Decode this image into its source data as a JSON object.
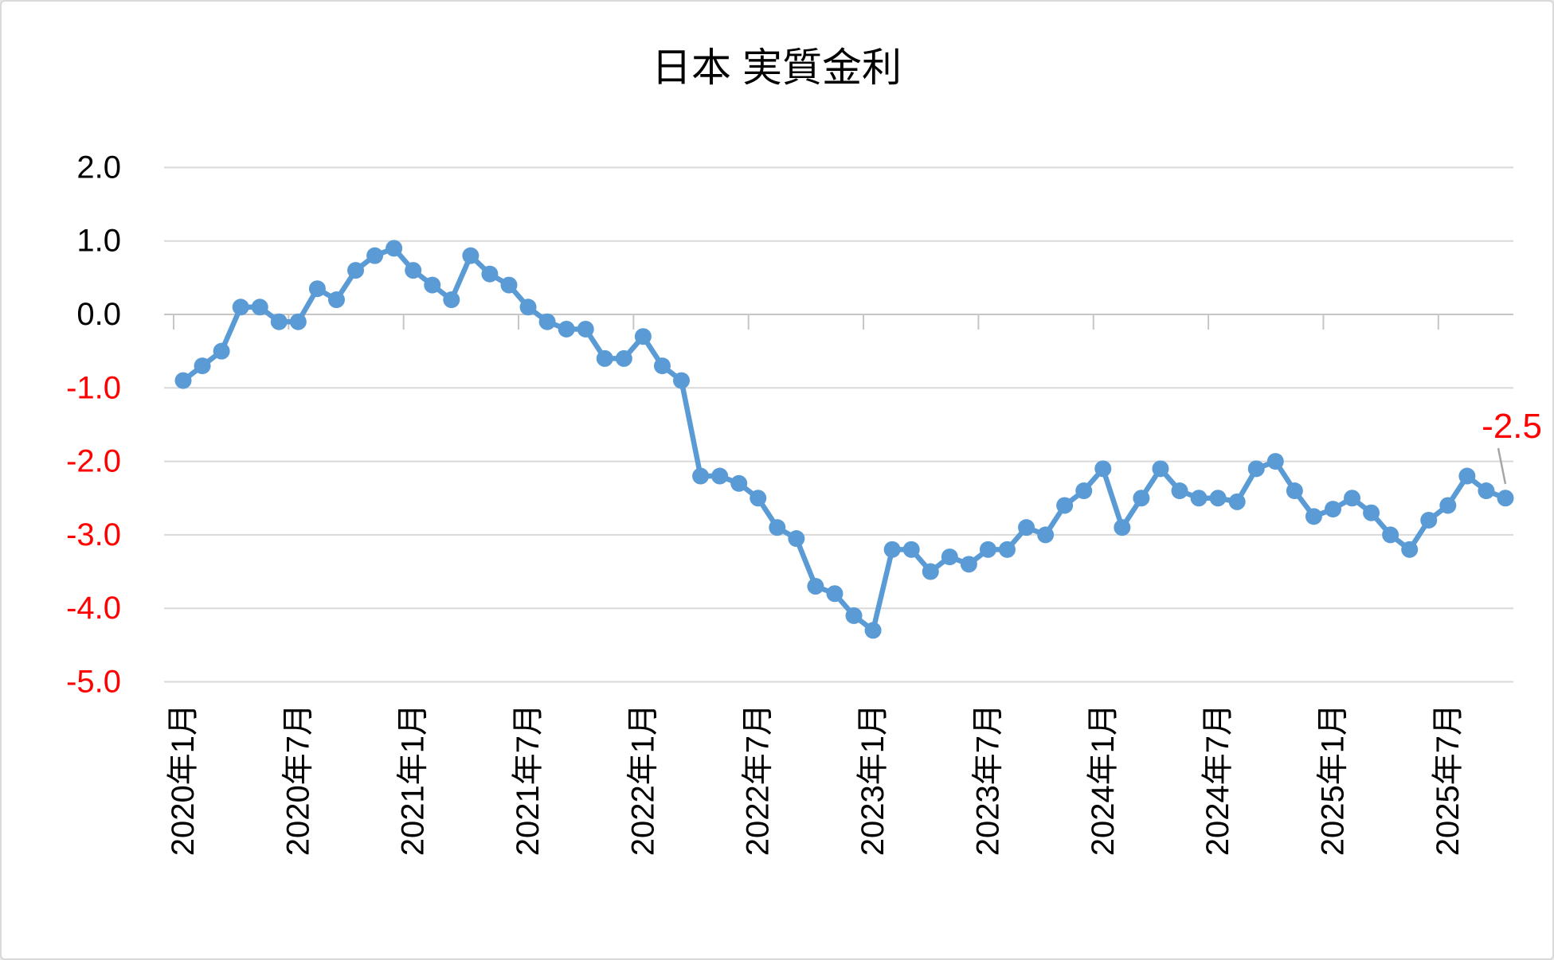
{
  "chart_data": {
    "type": "line",
    "title": "日本 実質金利",
    "xlabel": "",
    "ylabel": "",
    "ylim": [
      -5.0,
      2.0
    ],
    "y_step": 1.0,
    "grid": "horizontal-only",
    "legend": "none",
    "x_frequency": "monthly",
    "x_range": {
      "start": "2020-01",
      "end": "2025-10"
    },
    "x": [
      "2020-01",
      "2020-02",
      "2020-03",
      "2020-04",
      "2020-05",
      "2020-06",
      "2020-07",
      "2020-08",
      "2020-09",
      "2020-10",
      "2020-11",
      "2020-12",
      "2021-01",
      "2021-02",
      "2021-03",
      "2021-04",
      "2021-05",
      "2021-06",
      "2021-07",
      "2021-08",
      "2021-09",
      "2021-10",
      "2021-11",
      "2021-12",
      "2022-01",
      "2022-02",
      "2022-03",
      "2022-04",
      "2022-05",
      "2022-06",
      "2022-07",
      "2022-08",
      "2022-09",
      "2022-10",
      "2022-11",
      "2022-12",
      "2023-01",
      "2023-02",
      "2023-03",
      "2023-04",
      "2023-05",
      "2023-06",
      "2023-07",
      "2023-08",
      "2023-09",
      "2023-10",
      "2023-11",
      "2023-12",
      "2024-01",
      "2024-02",
      "2024-03",
      "2024-04",
      "2024-05",
      "2024-06",
      "2024-07",
      "2024-08",
      "2024-09",
      "2024-10",
      "2024-11",
      "2024-12",
      "2025-01",
      "2025-02",
      "2025-03",
      "2025-04",
      "2025-05",
      "2025-06",
      "2025-07",
      "2025-08",
      "2025-09",
      "2025-10"
    ],
    "series": [
      {
        "name": "実質金利",
        "values": [
          -0.9,
          -0.7,
          -0.5,
          0.1,
          0.1,
          -0.1,
          -0.1,
          0.35,
          0.2,
          0.6,
          0.8,
          0.9,
          0.6,
          0.4,
          0.2,
          0.8,
          0.55,
          0.4,
          0.1,
          -0.1,
          -0.2,
          -0.2,
          -0.6,
          -0.6,
          -0.3,
          -0.7,
          -0.9,
          -2.2,
          -2.2,
          -2.3,
          -2.5,
          -2.9,
          -3.05,
          -3.7,
          -3.8,
          -4.1,
          -4.3,
          -3.2,
          -3.2,
          -3.5,
          -3.3,
          -3.4,
          -3.2,
          -3.2,
          -2.9,
          -3.0,
          -2.6,
          -2.4,
          -2.1,
          -2.9,
          -2.5,
          -2.1,
          -2.4,
          -2.5,
          -2.5,
          -2.55,
          -2.1,
          -2.0,
          -2.4,
          -2.75,
          -2.65,
          -2.5,
          -2.7,
          -3.0,
          -3.2,
          -2.8,
          -2.6,
          -2.2,
          -2.4,
          -2.5
        ]
      }
    ],
    "y_tick_labels": [
      "2.0",
      "1.0",
      "0.0",
      "-1.0",
      "-2.0",
      "-3.0",
      "-4.0",
      "-5.0"
    ],
    "x_tick_labels": [
      "2020年1月",
      "2020年7月",
      "2021年1月",
      "2021年7月",
      "2022年1月",
      "2022年7月",
      "2023年1月",
      "2023年7月",
      "2024年1月",
      "2024年7月",
      "2025年1月",
      "2025年7月"
    ],
    "last_value_annotation": "-2.5",
    "colors": {
      "series": "#5B9BD5",
      "gridline": "#D9D9D9",
      "axis": "#C6C6C6",
      "tick": "#C6C6C6",
      "label_positive": "#000000",
      "label_negative": "#FF0000",
      "annotation": "#FF0000",
      "leader_line": "#A6A6A6",
      "title": "#000000",
      "x_label": "#000000"
    }
  }
}
